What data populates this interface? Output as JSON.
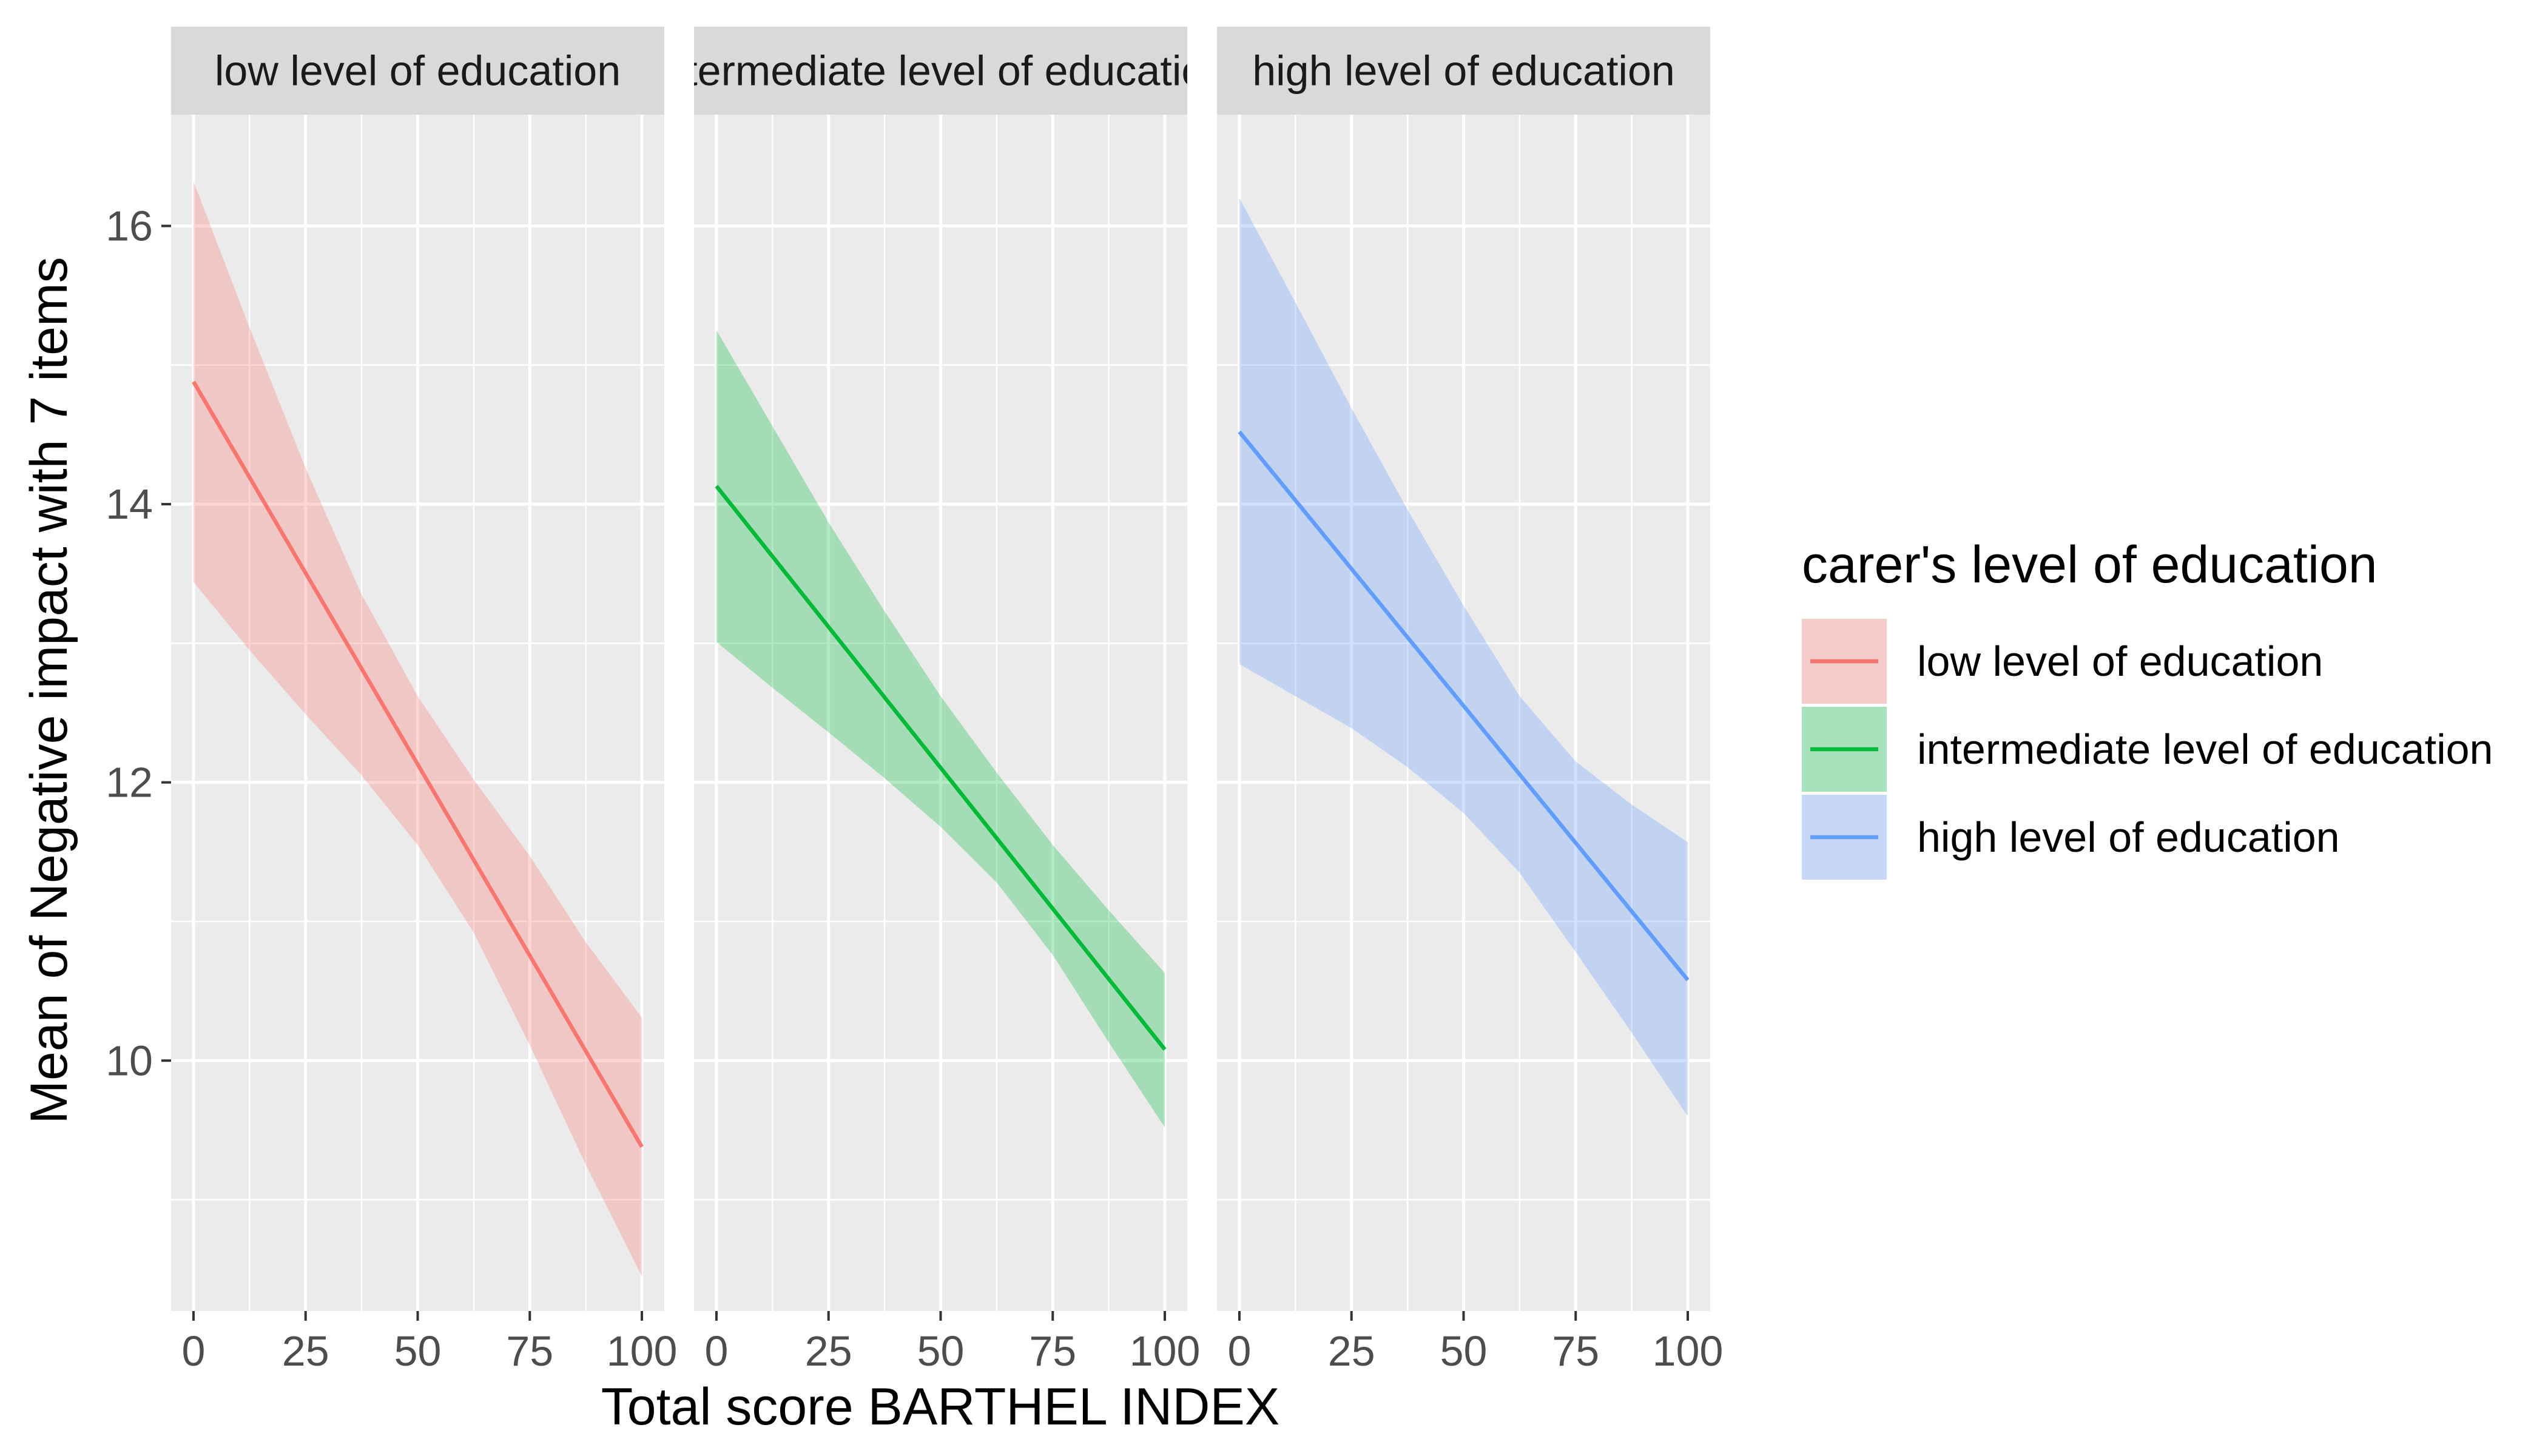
{
  "chart_data": {
    "type": "line",
    "xlabel": "Total score BARTHEL INDEX",
    "ylabel": "Mean of Negative impact with 7 items",
    "xlim": [
      -5,
      105
    ],
    "ylim": [
      8.2,
      16.8
    ],
    "x_ticks": [
      0,
      25,
      50,
      75,
      100
    ],
    "y_ticks": [
      10,
      12,
      14,
      16
    ],
    "grid": true,
    "legend_placement": "right",
    "legend": {
      "title": "carer's level of education",
      "entries": [
        "low level of education",
        "intermediate level of education",
        "high level of education"
      ]
    },
    "panels": [
      {
        "strip_label": "low level of education",
        "series": {
          "name": "low level of education",
          "color": "#F8766D",
          "x": [
            0,
            100
          ],
          "y": [
            14.88,
            9.38
          ],
          "band": {
            "x": [
              0,
              12.5,
              25,
              37.5,
              50,
              62.5,
              75,
              87.5,
              100
            ],
            "lower": [
              13.44,
              12.95,
              12.49,
              12.05,
              11.55,
              10.92,
              10.11,
              9.25,
              8.45
            ],
            "upper": [
              16.32,
              15.27,
              14.26,
              13.35,
              12.62,
              12.02,
              11.47,
              10.85,
              10.31
            ]
          }
        }
      },
      {
        "strip_label": "intermediate level of education",
        "series": {
          "name": "intermediate level of education",
          "color": "#00BA38",
          "x": [
            0,
            100
          ],
          "y": [
            14.13,
            10.08
          ],
          "band": {
            "x": [
              0,
              12.5,
              25,
              37.5,
              50,
              62.5,
              75,
              87.5,
              100
            ],
            "lower": [
              13.01,
              12.68,
              12.36,
              12.03,
              11.68,
              11.28,
              10.76,
              10.13,
              9.52
            ],
            "upper": [
              15.25,
              14.56,
              13.87,
              13.23,
              12.62,
              12.07,
              11.55,
              11.08,
              10.63
            ]
          }
        }
      },
      {
        "strip_label": "high level of education",
        "series": {
          "name": "high level of education",
          "color": "#619CFF",
          "x": [
            0,
            100
          ],
          "y": [
            14.52,
            10.58
          ],
          "band": {
            "x": [
              0,
              12.5,
              25,
              37.5,
              50,
              62.5,
              75,
              87.5,
              100
            ],
            "lower": [
              12.85,
              12.62,
              12.39,
              12.11,
              11.78,
              11.35,
              10.78,
              10.2,
              9.6
            ],
            "upper": [
              16.2,
              15.45,
              14.69,
              13.96,
              13.27,
              12.62,
              12.15,
              11.84,
              11.57
            ]
          }
        }
      }
    ]
  }
}
